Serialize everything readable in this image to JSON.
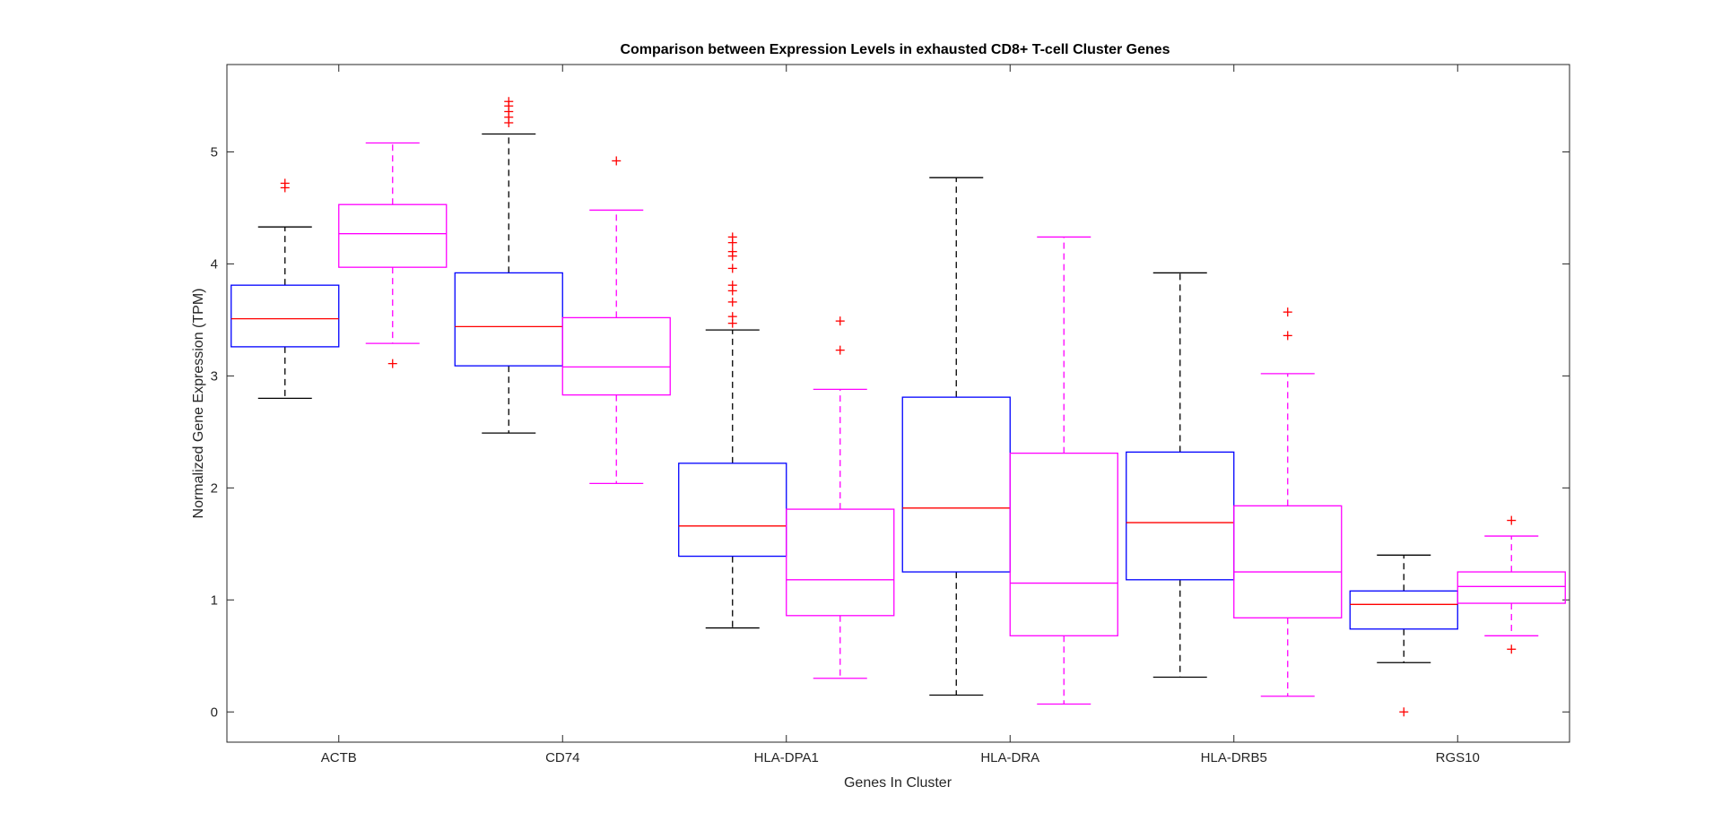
{
  "chart_data": {
    "type": "box",
    "title": "Comparison between Expression Levels in exhausted CD8+ T-cell Cluster Genes",
    "xlabel": "Genes In Cluster",
    "ylabel": "Normalized Gene Expression (TPM)",
    "categories": [
      "ACTB",
      "CD74",
      "HLA-DPA1",
      "HLA-DRA",
      "HLA-DRB5",
      "RGS10"
    ],
    "ylim": [
      -0.27,
      5.78
    ],
    "yticks": [
      0,
      1,
      2,
      3,
      4,
      5
    ],
    "grid": false,
    "series": [
      {
        "box_color": "#0000ff",
        "whisker_color": "#000000",
        "median_color": "#ff0000",
        "outlier_color": "#ff0000",
        "boxes": [
          {
            "whisker_low": 2.8,
            "q1": 3.26,
            "median": 3.51,
            "q3": 3.81,
            "whisker_high": 4.33,
            "outliers": [
              4.68,
              4.72
            ]
          },
          {
            "whisker_low": 2.49,
            "q1": 3.09,
            "median": 3.44,
            "q3": 3.92,
            "whisker_high": 5.16,
            "outliers": [
              5.26,
              5.31,
              5.36,
              5.41,
              5.45
            ]
          },
          {
            "whisker_low": 0.75,
            "q1": 1.39,
            "median": 1.66,
            "q3": 2.22,
            "whisker_high": 3.41,
            "outliers": [
              3.47,
              3.53,
              3.66,
              3.76,
              3.81,
              3.96,
              4.07,
              4.11,
              4.19,
              4.24
            ]
          },
          {
            "whisker_low": 0.15,
            "q1": 1.25,
            "median": 1.82,
            "q3": 2.81,
            "whisker_high": 4.77,
            "outliers": []
          },
          {
            "whisker_low": 0.31,
            "q1": 1.18,
            "median": 1.69,
            "q3": 2.32,
            "whisker_high": 3.92,
            "outliers": []
          },
          {
            "whisker_low": 0.44,
            "q1": 0.74,
            "median": 0.96,
            "q3": 1.08,
            "whisker_high": 1.4,
            "outliers": [
              0.0
            ]
          }
        ]
      },
      {
        "box_color": "#ff00ff",
        "whisker_color": "#ff00ff",
        "median_color": "#ff00ff",
        "outlier_color": "#ff0000",
        "boxes": [
          {
            "whisker_low": 3.29,
            "q1": 3.97,
            "median": 4.27,
            "q3": 4.53,
            "whisker_high": 5.08,
            "outliers": [
              3.11
            ]
          },
          {
            "whisker_low": 2.04,
            "q1": 2.83,
            "median": 3.08,
            "q3": 3.52,
            "whisker_high": 4.48,
            "outliers": [
              4.92
            ]
          },
          {
            "whisker_low": 0.3,
            "q1": 0.86,
            "median": 1.18,
            "q3": 1.81,
            "whisker_high": 2.88,
            "outliers": [
              3.23,
              3.49
            ]
          },
          {
            "whisker_low": 0.07,
            "q1": 0.68,
            "median": 1.15,
            "q3": 2.31,
            "whisker_high": 4.24,
            "outliers": []
          },
          {
            "whisker_low": 0.14,
            "q1": 0.84,
            "median": 1.25,
            "q3": 1.84,
            "whisker_high": 3.02,
            "outliers": [
              3.36,
              3.57
            ]
          },
          {
            "whisker_low": 0.68,
            "q1": 0.97,
            "median": 1.12,
            "q3": 1.25,
            "whisker_high": 1.57,
            "outliers": [
              0.56,
              1.71
            ]
          }
        ]
      }
    ]
  }
}
